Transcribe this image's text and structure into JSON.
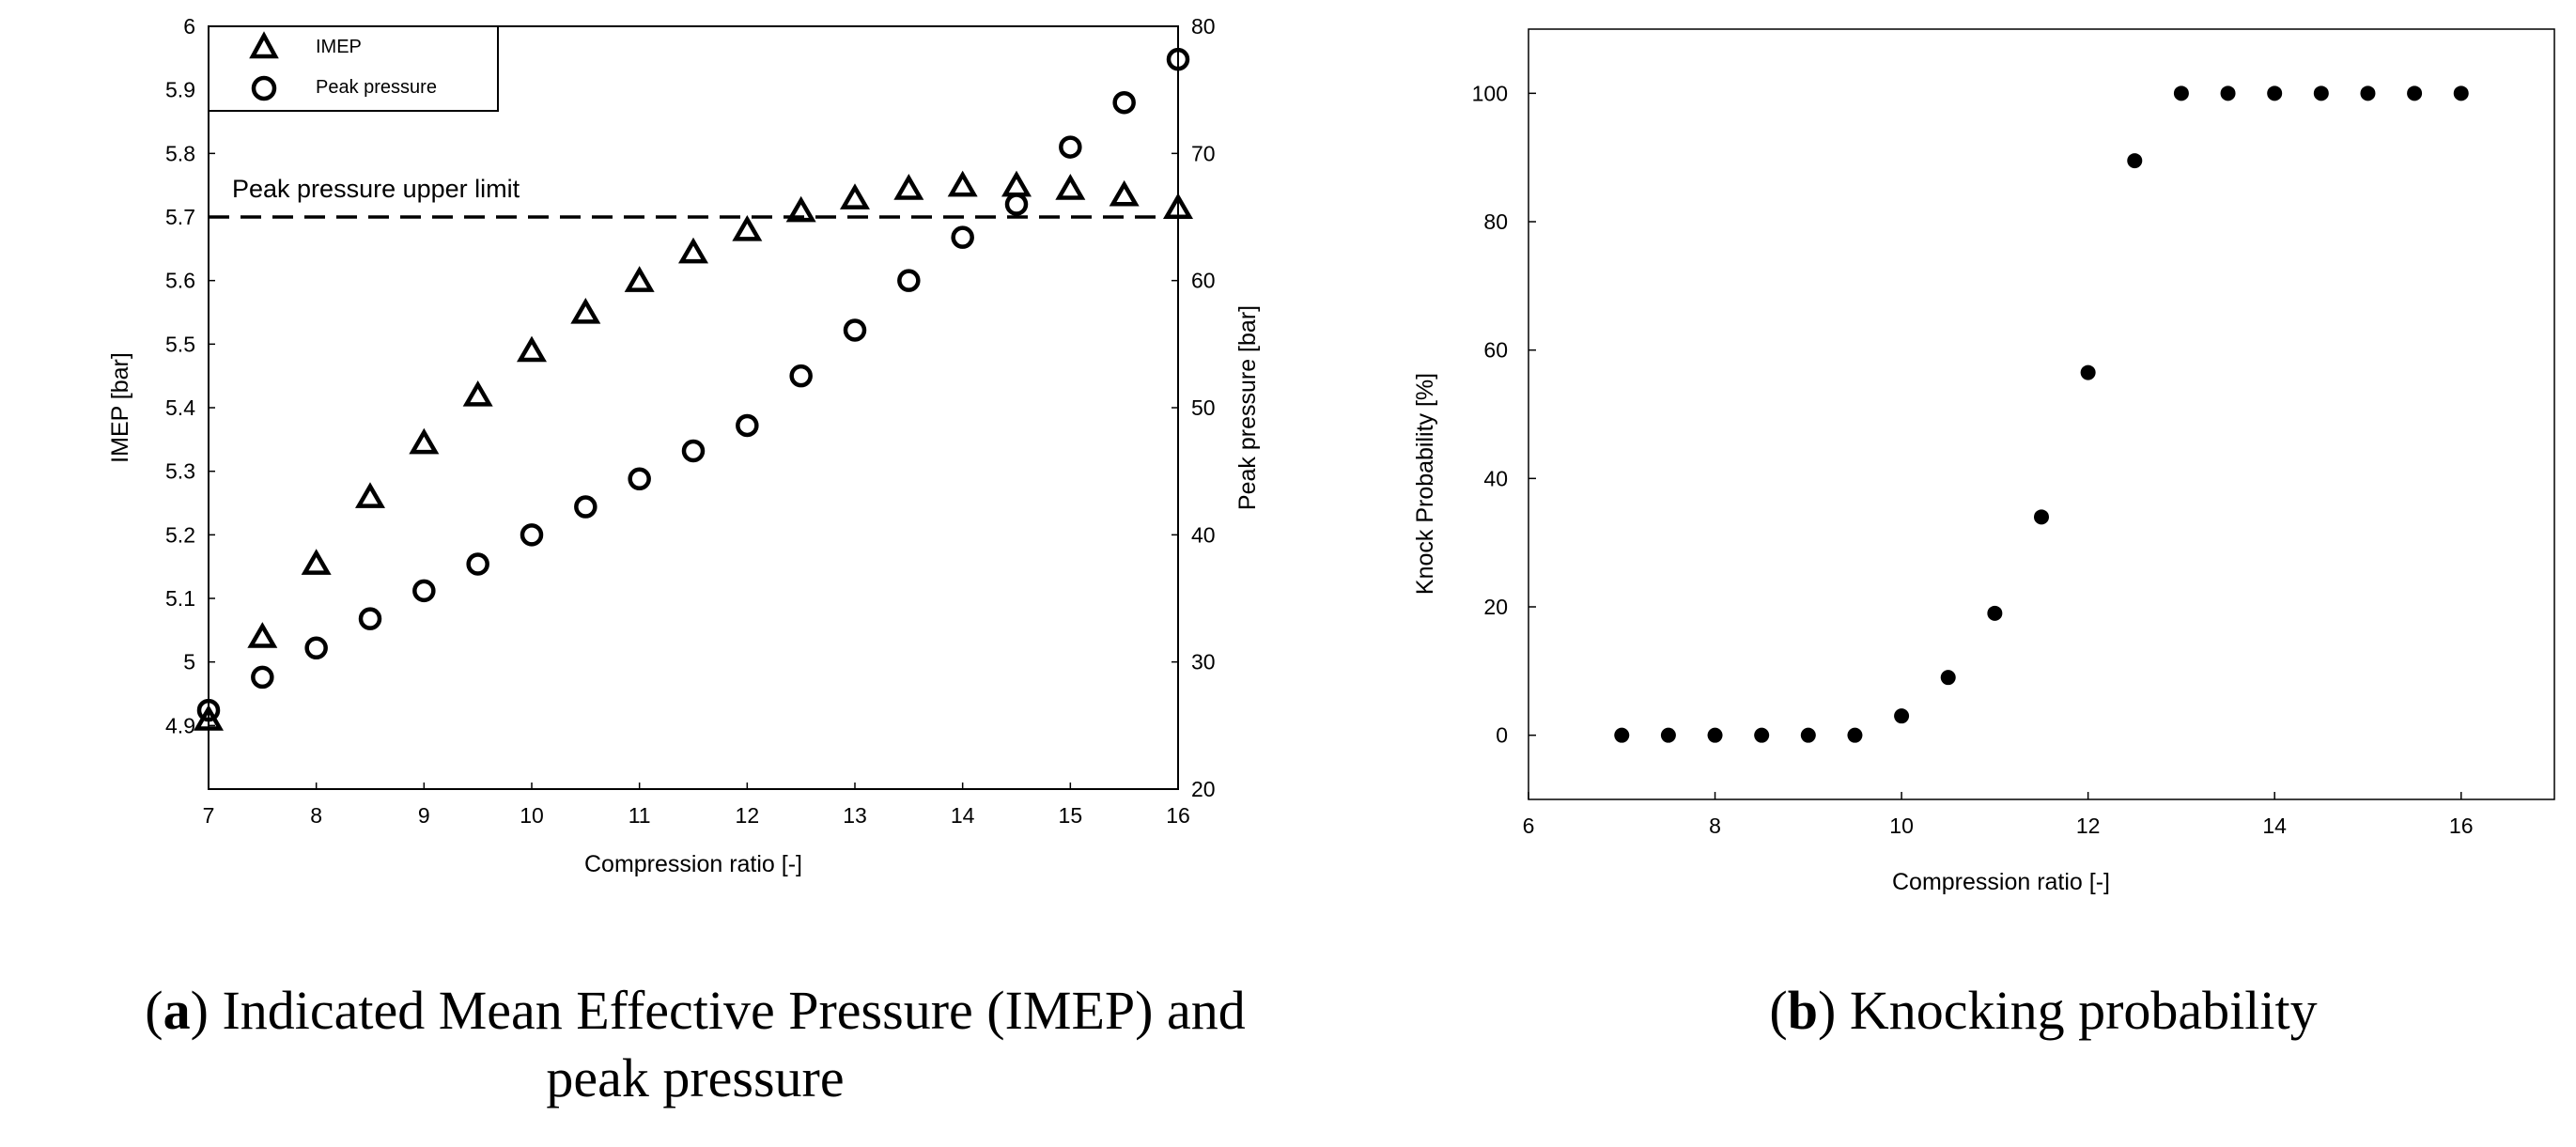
{
  "chart_data": [
    {
      "type": "scatter",
      "panel": "a",
      "xlabel": "Compression ratio [-]",
      "ylabel": "IMEP [bar]",
      "y2label": "Peak pressure [bar]",
      "xlim": [
        7,
        16
      ],
      "ylim": [
        4.8,
        6.0
      ],
      "y2lim": [
        20,
        80
      ],
      "xticks": [
        "7",
        "8",
        "9",
        "10",
        "11",
        "12",
        "13",
        "14",
        "15",
        "16"
      ],
      "yticks": [
        "4.9",
        "5",
        "5.1",
        "5.2",
        "5.3",
        "5.4",
        "5.5",
        "5.6",
        "5.7",
        "5.8",
        "5.9",
        "6"
      ],
      "y2ticks": [
        "20",
        "30",
        "40",
        "50",
        "60",
        "70",
        "80"
      ],
      "x": [
        7,
        7.5,
        8,
        8.5,
        9,
        9.5,
        10,
        10.5,
        11,
        11.5,
        12,
        12.5,
        13,
        13.5,
        14,
        14.5,
        15,
        15.5,
        16
      ],
      "series": [
        {
          "name": "IMEP",
          "axis": "left",
          "marker": "triangle",
          "values": [
            4.91,
            5.04,
            5.155,
            5.26,
            5.345,
            5.42,
            5.49,
            5.55,
            5.6,
            5.645,
            5.68,
            5.71,
            5.73,
            5.745,
            5.75,
            5.75,
            5.745,
            5.735,
            5.715
          ]
        },
        {
          "name": "Peak pressure",
          "axis": "right",
          "marker": "circle",
          "values": [
            26.2,
            28.8,
            31.1,
            33.4,
            35.6,
            37.7,
            40,
            42.2,
            44.4,
            46.6,
            48.6,
            52.5,
            56.1,
            60,
            63.4,
            66,
            70.5,
            74,
            77.4
          ]
        }
      ],
      "reference_line": {
        "label": "Peak pressure upper limit",
        "axis": "left",
        "value": 5.7
      },
      "legend_position": "top-left"
    },
    {
      "type": "scatter",
      "panel": "b",
      "xlabel": "Compression ratio [-]",
      "ylabel": "Knock Probability  [%]",
      "xlim": [
        6,
        17
      ],
      "ylim": [
        -10,
        110
      ],
      "xticks": [
        "6",
        "8",
        "10",
        "12",
        "14",
        "16"
      ],
      "yticks": [
        "0",
        "20",
        "40",
        "60",
        "80",
        "100"
      ],
      "x": [
        7,
        7.5,
        8,
        8.5,
        9,
        9.5,
        10,
        10.5,
        11,
        11.5,
        12,
        12.5,
        13,
        13.5,
        14,
        14.5,
        15,
        15.5,
        16
      ],
      "series": [
        {
          "name": "Knock probability",
          "marker": "filled-circle",
          "values": [
            0,
            0,
            0,
            0,
            0,
            0,
            3,
            9,
            19,
            34,
            56.5,
            89.5,
            100,
            100,
            100,
            100,
            100,
            100,
            100
          ]
        }
      ]
    }
  ],
  "captions": {
    "a_letter": "a",
    "a_text": "Indicated Mean Effective Pressure (IMEP) and",
    "a_text2": "peak pressure",
    "b_letter": "b",
    "b_text": "Knocking probability"
  }
}
